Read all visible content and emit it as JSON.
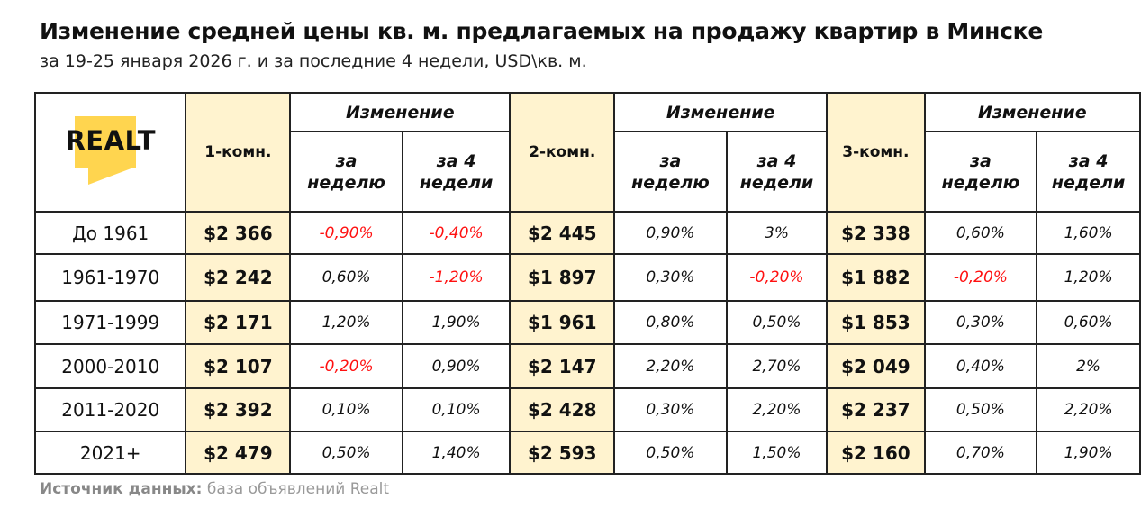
{
  "title": "Изменение средней цены кв. м. предлагаемых на продажу квартир в Минске",
  "subtitle": "за 19-25 января 2026 г. и за последние 4 недели, USD\\кв. м.",
  "logo_text": "REALT",
  "source_label": "Источник данных:",
  "source_text": " база объявлений Realt",
  "colors": {
    "price_column_bg": "#fff3cf",
    "negative": "#ff1010",
    "logo_yellow": "#ffd54f"
  },
  "chart_data": {
    "type": "table",
    "headers": {
      "rooms": [
        "1-комн.",
        "2-комн.",
        "3-комн."
      ],
      "change": "Изменение",
      "week": "за неделю",
      "four_weeks": "за 4 недели"
    },
    "rows": [
      {
        "period": "До 1961",
        "cells": [
          "$2 366",
          "-0,90%",
          "-0,40%",
          "$2 445",
          "0,90%",
          "3%",
          "$2 338",
          "0,60%",
          "1,60%"
        ]
      },
      {
        "period": "1961-1970",
        "cells": [
          "$2 242",
          "0,60%",
          "-1,20%",
          "$1 897",
          "0,30%",
          "-0,20%",
          "$1 882",
          "-0,20%",
          "1,20%"
        ]
      },
      {
        "period": "1971-1999",
        "cells": [
          "$2 171",
          "1,20%",
          "1,90%",
          "$1 961",
          "0,80%",
          "0,50%",
          "$1 853",
          "0,30%",
          "0,60%"
        ]
      },
      {
        "period": "2000-2010",
        "cells": [
          "$2 107",
          "-0,20%",
          "0,90%",
          "$2 147",
          "2,20%",
          "2,70%",
          "$2 049",
          "0,40%",
          "2%"
        ]
      },
      {
        "period": "2011-2020",
        "cells": [
          "$2 392",
          "0,10%",
          "0,10%",
          "$2 428",
          "0,30%",
          "2,20%",
          "$2 237",
          "0,50%",
          "2,20%"
        ]
      },
      {
        "period": "2021+",
        "cells": [
          "$2 479",
          "0,50%",
          "1,40%",
          "$2 593",
          "0,50%",
          "1,50%",
          "$2 160",
          "0,70%",
          "1,90%"
        ]
      }
    ]
  }
}
